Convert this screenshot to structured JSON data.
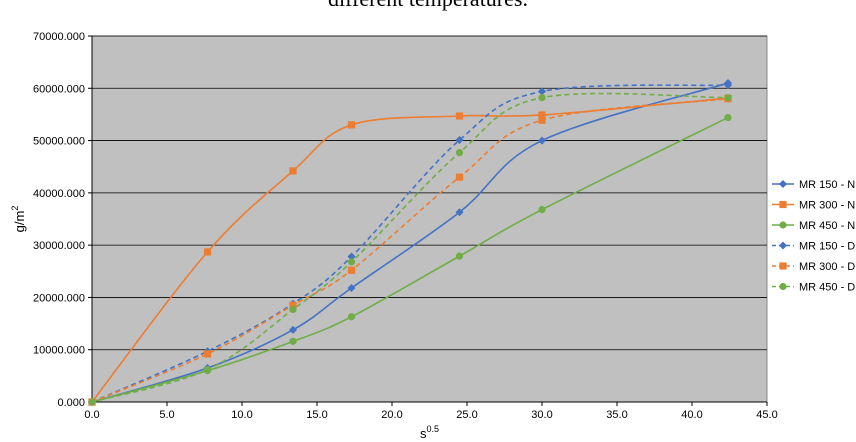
{
  "caption": "different temperatures.",
  "chart_data": {
    "type": "line",
    "title": "",
    "xlabel": "s",
    "xlabel_superscript": "0.5",
    "ylabel": "g/m",
    "ylabel_superscript": "2",
    "xlim": [
      0,
      45
    ],
    "ylim": [
      0,
      70000
    ],
    "x_ticks": [
      "0.0",
      "5.0",
      "10.0",
      "15.0",
      "20.0",
      "25.0",
      "30.0",
      "35.0",
      "40.0",
      "45.0"
    ],
    "y_ticks": [
      "0.000",
      "10000.000",
      "20000.000",
      "30000.000",
      "40000.000",
      "50000.000",
      "60000.000",
      "70000.000"
    ],
    "grid": true,
    "plot_background": "#c0c0c0",
    "legend_position": "right",
    "series": [
      {
        "name": "MR 150 - N",
        "color": "#4472c4",
        "dash": false,
        "marker": "diamond",
        "points": [
          [
            0,
            0
          ],
          [
            7.7,
            6500
          ],
          [
            13.4,
            13800
          ],
          [
            17.3,
            21800
          ],
          [
            24.5,
            36300
          ],
          [
            30,
            50000
          ],
          [
            42.4,
            61000
          ]
        ]
      },
      {
        "name": "MR 300 - N",
        "color": "#ed7d31",
        "dash": false,
        "marker": "square",
        "points": [
          [
            0,
            0
          ],
          [
            7.7,
            28700
          ],
          [
            13.4,
            44200
          ],
          [
            17.3,
            53000
          ],
          [
            24.5,
            54700
          ],
          [
            30,
            54900
          ],
          [
            42.4,
            58100
          ]
        ]
      },
      {
        "name": "MR 450 - N",
        "color": "#70ad47",
        "dash": false,
        "marker": "circle",
        "points": [
          [
            0,
            0
          ],
          [
            7.7,
            6000
          ],
          [
            13.4,
            11600
          ],
          [
            17.3,
            16300
          ],
          [
            24.5,
            27900
          ],
          [
            30,
            36800
          ],
          [
            42.4,
            54400
          ]
        ]
      },
      {
        "name": "MR 150 - D",
        "color": "#4472c4",
        "dash": true,
        "marker": "diamond",
        "points": [
          [
            0,
            0
          ],
          [
            7.7,
            9700
          ],
          [
            13.4,
            18800
          ],
          [
            17.3,
            27800
          ],
          [
            24.5,
            50100
          ],
          [
            30,
            59400
          ],
          [
            42.4,
            60600
          ]
        ]
      },
      {
        "name": "MR 300 - D",
        "color": "#ed7d31",
        "dash": true,
        "marker": "square",
        "points": [
          [
            0,
            0
          ],
          [
            7.7,
            9200
          ],
          [
            13.4,
            18500
          ],
          [
            17.3,
            25200
          ],
          [
            24.5,
            43000
          ],
          [
            30,
            53900
          ],
          [
            42.4,
            58000
          ]
        ]
      },
      {
        "name": "MR 450 - D",
        "color": "#70ad47",
        "dash": true,
        "marker": "circle",
        "points": [
          [
            0,
            0
          ],
          [
            7.7,
            6200
          ],
          [
            13.4,
            17700
          ],
          [
            17.3,
            26800
          ],
          [
            24.5,
            47700
          ],
          [
            30,
            58200
          ],
          [
            42.4,
            58200
          ]
        ]
      }
    ]
  }
}
